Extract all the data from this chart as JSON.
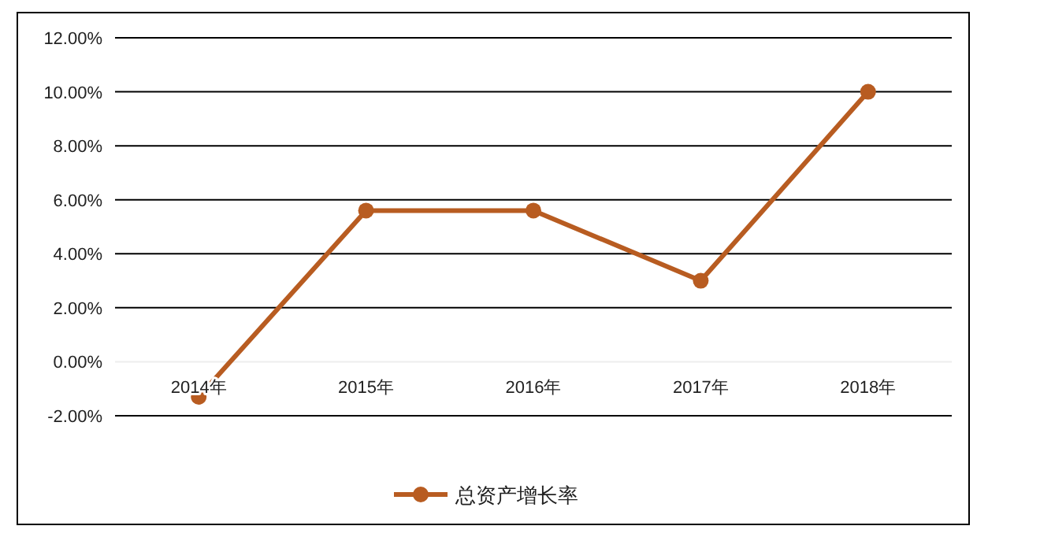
{
  "chart_data": {
    "type": "line",
    "categories": [
      "2014年",
      "2015年",
      "2016年",
      "2017年",
      "2018年"
    ],
    "series": [
      {
        "name": "总资产增长率",
        "color": "#b85c21",
        "values": [
          -1.3,
          5.6,
          5.6,
          3.0,
          10.0
        ]
      }
    ],
    "ylim": [
      -2,
      12
    ],
    "yticks": [
      {
        "value": -2,
        "label": "-2.00%"
      },
      {
        "value": 0,
        "label": "0.00%"
      },
      {
        "value": 2,
        "label": "2.00%"
      },
      {
        "value": 4,
        "label": "4.00%"
      },
      {
        "value": 6,
        "label": "6.00%"
      },
      {
        "value": 8,
        "label": "8.00%"
      },
      {
        "value": 10,
        "label": "10.00%"
      },
      {
        "value": 12,
        "label": "12.00%"
      }
    ],
    "grid": "y",
    "legend": "bottom",
    "marker": "circle",
    "line_style": "solid"
  }
}
